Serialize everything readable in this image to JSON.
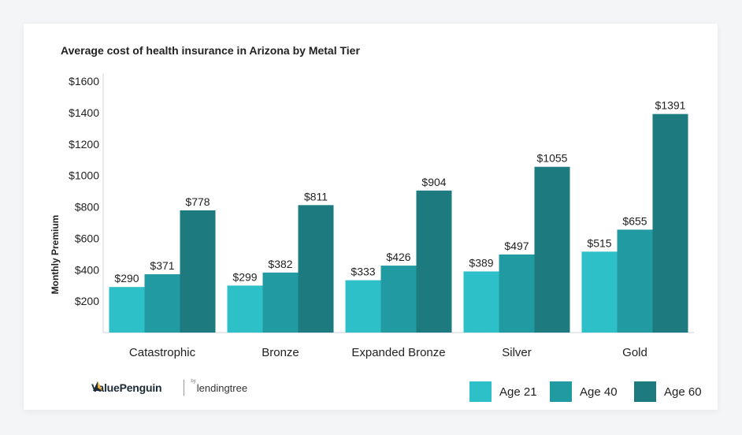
{
  "chart_data": {
    "type": "bar",
    "title": "Average cost of health insurance in Arizona by Metal Tier",
    "ylabel": "Monthly Premium",
    "xlabel": "",
    "categories": [
      "Catastrophic",
      "Bronze",
      "Expanded Bronze",
      "Silver",
      "Gold"
    ],
    "series": [
      {
        "name": "Age 21",
        "color": "#2ec0c8",
        "values": [
          290,
          299,
          333,
          389,
          515
        ],
        "labels": [
          "$290",
          "$299",
          "$333",
          "$389",
          "$515"
        ]
      },
      {
        "name": "Age 40",
        "color": "#219aa2",
        "values": [
          371,
          382,
          426,
          497,
          655
        ],
        "labels": [
          "$371",
          "$382",
          "$426",
          "$497",
          "$655"
        ]
      },
      {
        "name": "Age 60",
        "color": "#1d7a7f",
        "values": [
          778,
          811,
          904,
          1055,
          1391
        ],
        "labels": [
          "$778",
          "$811",
          "$904",
          "$1055",
          "$1391"
        ]
      }
    ],
    "yticks": [
      200,
      400,
      600,
      800,
      1000,
      1200,
      1400,
      1600
    ],
    "ytick_labels": [
      "$200",
      "$400",
      "$600",
      "$800",
      "$1000",
      "$1200",
      "$1400",
      "$1600"
    ],
    "ylim": [
      0,
      1600
    ],
    "grid": false,
    "legend": "bottom-right"
  },
  "brand": {
    "name": "ValuePenguin",
    "by": "by",
    "partner": "lendingtree"
  }
}
